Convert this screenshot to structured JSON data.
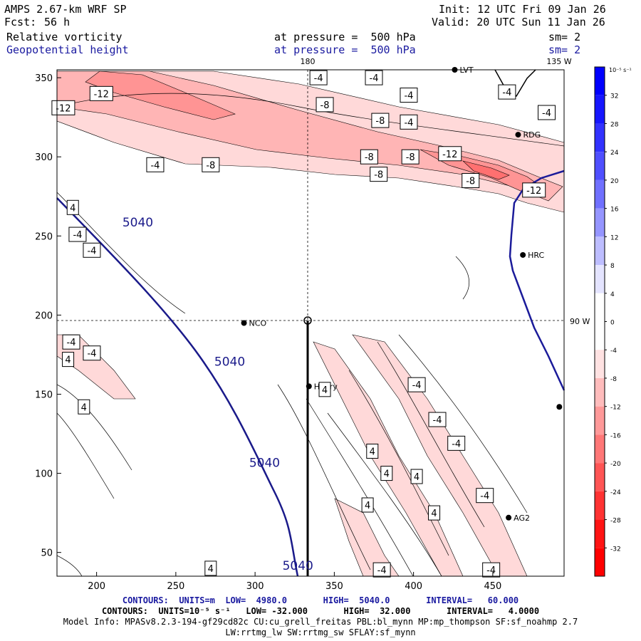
{
  "header": {
    "model": "AMPS 2.67-km WRF SP",
    "fcst_label": "Fcst:",
    "fcst_value": "56 h",
    "init": "Init: 12 UTC Fri 09 Jan 26",
    "valid": "Valid: 20 UTC Sun 11 Jan 26",
    "field1": "Relative vorticity",
    "field2": "Geopotential height",
    "pressure1": "at pressure =  500 hPa",
    "pressure2": "at pressure =  500 hPa",
    "sm1": "sm= 2",
    "sm2": "sm= 2"
  },
  "map": {
    "top_label_180": "180",
    "top_label_135w": "135 W",
    "right_label_90w": "90 W",
    "x_ticks": [
      "200",
      "250",
      "300",
      "350",
      "400",
      "450"
    ],
    "y_ticks": [
      "350",
      "300",
      "250",
      "200",
      "150",
      "100",
      "50"
    ],
    "x_range": [
      175,
      495
    ],
    "y_range": [
      35,
      355
    ],
    "stations": [
      {
        "name": "LVT",
        "x": 426,
        "y": 355
      },
      {
        "name": "RDG",
        "x": 466,
        "y": 314
      },
      {
        "name": "HRC",
        "x": 469,
        "y": 238
      },
      {
        "name": "NCO",
        "x": 293,
        "y": 195
      },
      {
        "name": "Henry",
        "x": 334,
        "y": 155
      },
      {
        "name": "AG2",
        "x": 460,
        "y": 72
      },
      {
        "name": "",
        "x": 492,
        "y": 142
      },
      {
        "name": "",
        "x": 400,
        "y": 300
      }
    ],
    "height_labels": [
      {
        "text": "5040",
        "x": 226,
        "y": 256
      },
      {
        "text": "5040",
        "x": 284,
        "y": 168
      },
      {
        "text": "5040",
        "x": 306,
        "y": 104
      },
      {
        "text": "5040",
        "x": 327,
        "y": 39
      }
    ],
    "vort_labels": [
      {
        "text": "-4",
        "x": 340,
        "y": 350
      },
      {
        "text": "-4",
        "x": 375,
        "y": 350
      },
      {
        "text": "-4",
        "x": 397,
        "y": 339
      },
      {
        "text": "-4",
        "x": 459,
        "y": 341
      },
      {
        "text": "-4",
        "x": 484,
        "y": 328
      },
      {
        "text": "-12",
        "x": 203,
        "y": 340
      },
      {
        "text": "-12",
        "x": 179,
        "y": 331
      },
      {
        "text": "-8",
        "x": 344,
        "y": 333
      },
      {
        "text": "-8",
        "x": 379,
        "y": 323
      },
      {
        "text": "-4",
        "x": 397,
        "y": 322
      },
      {
        "text": "-8",
        "x": 372,
        "y": 300
      },
      {
        "text": "-8",
        "x": 398,
        "y": 300
      },
      {
        "text": "-12",
        "x": 423,
        "y": 302
      },
      {
        "text": "-4",
        "x": 237,
        "y": 295
      },
      {
        "text": "-8",
        "x": 272,
        "y": 295
      },
      {
        "text": "-8",
        "x": 378,
        "y": 289
      },
      {
        "text": "-8",
        "x": 436,
        "y": 285
      },
      {
        "text": "-12",
        "x": 476,
        "y": 279
      },
      {
        "text": "4",
        "x": 185,
        "y": 268
      },
      {
        "text": "-4",
        "x": 188,
        "y": 251
      },
      {
        "text": "-4",
        "x": 197,
        "y": 241
      },
      {
        "text": "-4",
        "x": 184,
        "y": 183
      },
      {
        "text": "-4",
        "x": 197,
        "y": 176
      },
      {
        "text": "4",
        "x": 182,
        "y": 172
      },
      {
        "text": "4",
        "x": 192,
        "y": 142
      },
      {
        "text": "4",
        "x": 344,
        "y": 153
      },
      {
        "text": "-4",
        "x": 402,
        "y": 156
      },
      {
        "text": "-4",
        "x": 415,
        "y": 134
      },
      {
        "text": "-4",
        "x": 427,
        "y": 119
      },
      {
        "text": "4",
        "x": 374,
        "y": 114
      },
      {
        "text": "4",
        "x": 383,
        "y": 100
      },
      {
        "text": "4",
        "x": 402,
        "y": 98
      },
      {
        "text": "-4",
        "x": 445,
        "y": 86
      },
      {
        "text": "4",
        "x": 371,
        "y": 80
      },
      {
        "text": "4",
        "x": 413,
        "y": 75
      },
      {
        "text": "-4",
        "x": 380,
        "y": 39
      },
      {
        "text": "-4",
        "x": 449,
        "y": 39
      },
      {
        "text": "4",
        "x": 272,
        "y": 40
      }
    ],
    "colorbar": {
      "unit_label": "10⁻⁵ s⁻¹",
      "levels": [
        "32",
        "28",
        "24",
        "20",
        "16",
        "12",
        "8",
        "4",
        "0",
        "-4",
        "-8",
        "-12",
        "-16",
        "-20",
        "-24",
        "-28",
        "-32"
      ],
      "colors_top_to_bottom": [
        "#0000ff",
        "#1616ff",
        "#3232ff",
        "#4f4fff",
        "#7070ff",
        "#9595ff",
        "#bdbdff",
        "#e4e4ff",
        "#ffffff",
        "#ffffff",
        "#ffe2e2",
        "#ffbcbc",
        "#ff9999",
        "#ff7777",
        "#ff5555",
        "#ff3333",
        "#ff1414",
        "#ff0000"
      ]
    }
  },
  "footer": {
    "line1": "CONTOURS:  UNITS=m  LOW=  4980.0       HIGH=  5040.0       INTERVAL=   60.000",
    "line2": "CONTOURS:  UNITS=10⁻⁵ s⁻¹   LOW= -32.000       HIGH=  32.000       INTERVAL=   4.0000",
    "line3": "Model Info: MPASv8.2.3-194-gf29cd82c CU:cu_grell_freitas PBL:bl_mynn MP:mp_thompson SF:sf_noahmp 2.7",
    "line4": "LW:rrtmg_lw SW:rrtmg_sw SFLAY:sf_mynn"
  }
}
